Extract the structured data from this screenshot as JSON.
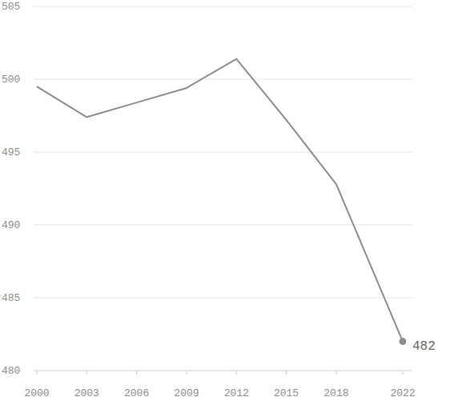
{
  "chart_data": {
    "type": "line",
    "x": [
      2000,
      2003,
      2006,
      2009,
      2012,
      2015,
      2018,
      2022
    ],
    "values": [
      499.5,
      497.4,
      498.4,
      499.4,
      501.4,
      497.2,
      492.8,
      482
    ],
    "color": "#8c8c8c",
    "marker": "end",
    "xlim": [
      2000,
      2022
    ],
    "xticks": [
      2000,
      2003,
      2006,
      2009,
      2012,
      2015,
      2018,
      2022
    ],
    "ylim": [
      480,
      505
    ],
    "yticks": [
      480,
      485,
      490,
      495,
      500,
      505
    ],
    "grid": true,
    "annotations": [
      {
        "x": 2022,
        "y": 482,
        "text": "482"
      }
    ]
  }
}
